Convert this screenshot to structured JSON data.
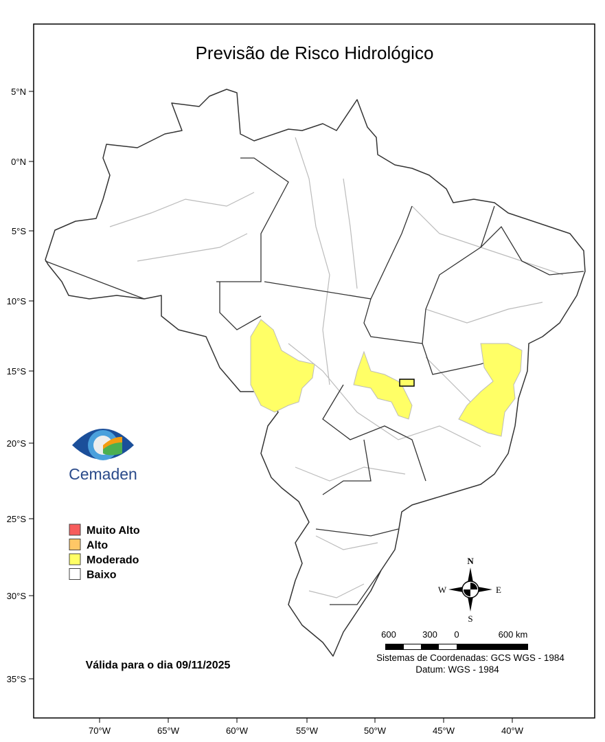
{
  "title": "Previsão de Risco Hidrológico",
  "validity": "Válida para o dia 09/11/2025",
  "logo": {
    "text": "Cemaden",
    "icon": "cemaden-eye-logo"
  },
  "latitude_ticks": [
    "5°N",
    "0°N",
    "5°S",
    "10°S",
    "15°S",
    "20°S",
    "25°S",
    "30°S",
    "35°S"
  ],
  "longitude_ticks": [
    "70°W",
    "65°W",
    "60°W",
    "55°W",
    "50°W",
    "45°W",
    "40°W"
  ],
  "legend": [
    {
      "label": "Muito Alto",
      "color": "#f75c5c"
    },
    {
      "label": "Alto",
      "color": "#ffc766"
    },
    {
      "label": "Moderado",
      "color": "#ffff66"
    },
    {
      "label": "Baixo",
      "color": "#ffffff"
    }
  ],
  "compass": {
    "n": "N",
    "s": "S",
    "e": "E",
    "w": "W"
  },
  "scale": {
    "labels": [
      "600",
      "300",
      "0",
      "600 km"
    ]
  },
  "crs": "Sistemas de Coordenadas: GCS WGS - 1984",
  "datum": "Datum: WGS - 1984",
  "risk_areas": [
    {
      "level": "Moderado",
      "color": "#ffff66"
    },
    {
      "level": "Moderado",
      "color": "#ffff66"
    },
    {
      "level": "Moderado",
      "color": "#ffff66"
    },
    {
      "level": "Moderado",
      "color": "#ffff66"
    }
  ]
}
